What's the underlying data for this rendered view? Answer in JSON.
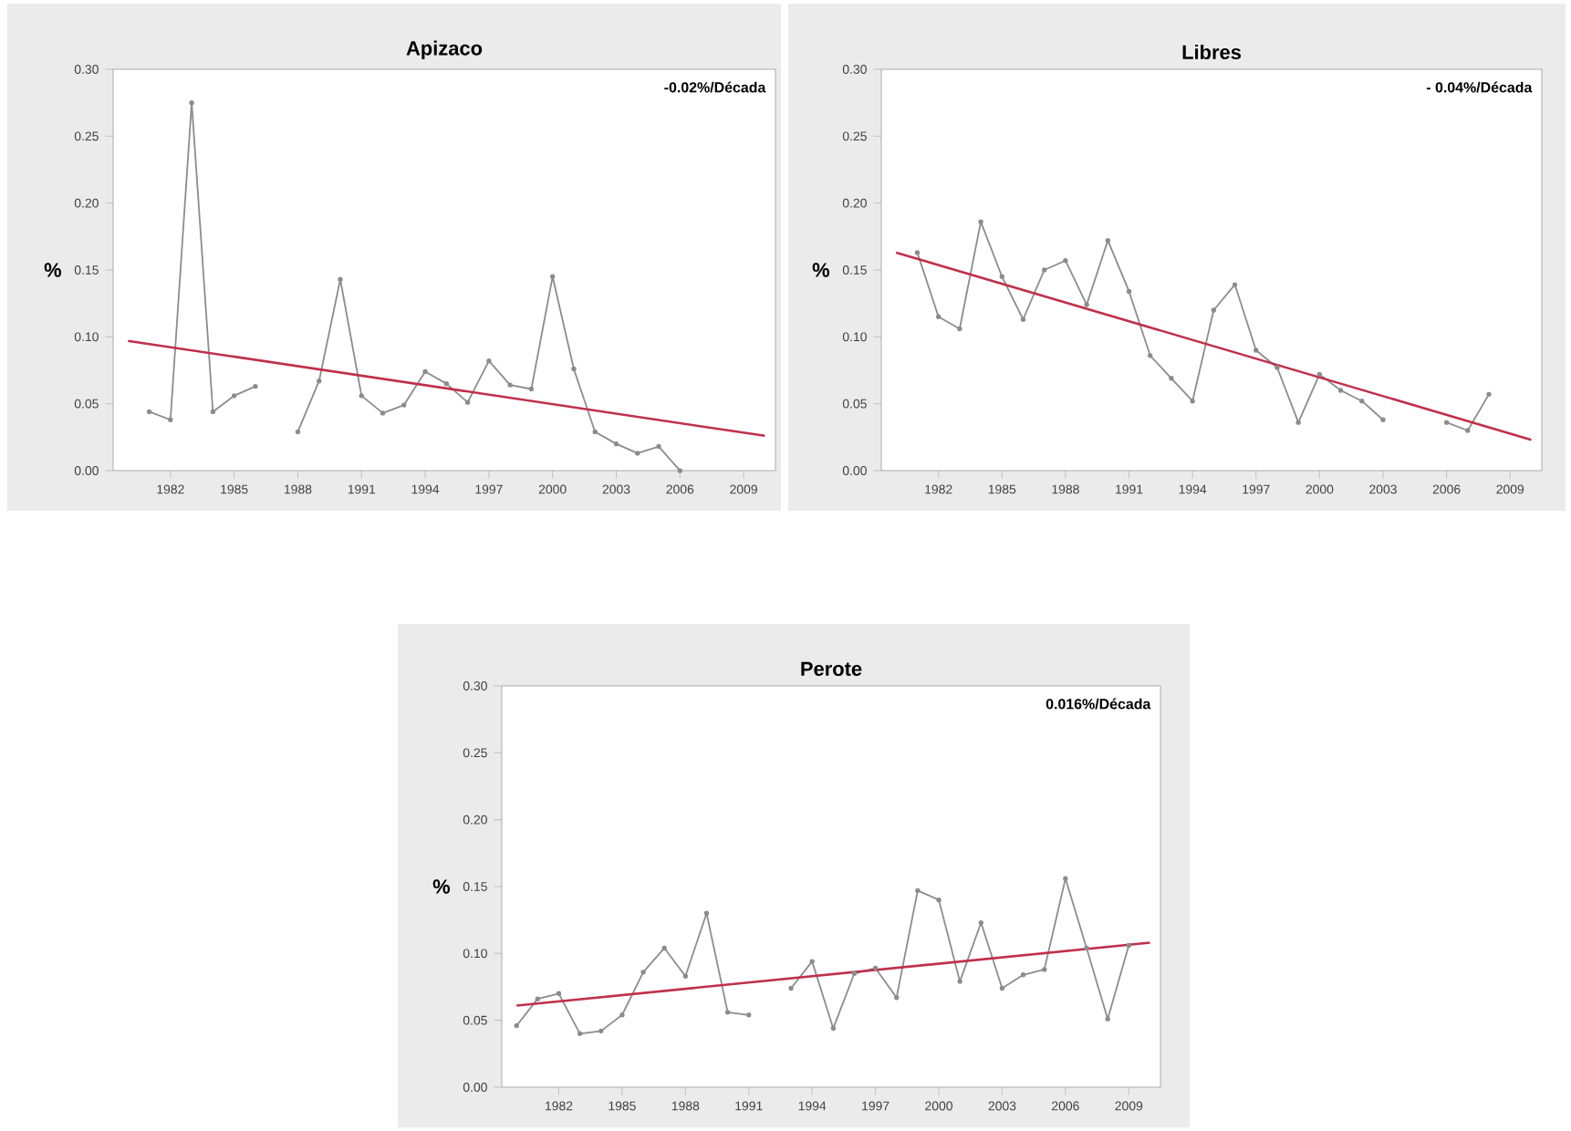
{
  "chart_data": [
    {
      "type": "line",
      "title": "Apizaco",
      "ylabel": "%",
      "annotations": [
        "-0.02%/Década"
      ],
      "xlim": [
        1979.3,
        2010.5
      ],
      "ylim": [
        0,
        0.3
      ],
      "xticks": [
        1982,
        1985,
        1988,
        1991,
        1994,
        1997,
        2000,
        2003,
        2006,
        2009
      ],
      "yticks": [
        {
          "value": 0,
          "label": "0.00"
        },
        {
          "value": 0.05,
          "label": "0.05"
        },
        {
          "value": 0.1,
          "label": "0.10"
        },
        {
          "value": 0.15,
          "label": "0.15"
        },
        {
          "value": 0.2,
          "label": "0.20"
        },
        {
          "value": 0.25,
          "label": "0.25"
        },
        {
          "value": 0.3,
          "label": "0.30"
        }
      ],
      "grid": false,
      "series": [
        {
          "color": "#8c8c8c",
          "marker": "circle",
          "x": [
            1981,
            1982,
            1983,
            1984,
            1985,
            1986,
            1987,
            1988,
            1989,
            1990,
            1991,
            1992,
            1993,
            1994,
            1995,
            1996,
            1997,
            1998,
            1999,
            2000,
            2001,
            2002,
            2003,
            2004,
            2005,
            2006
          ],
          "values": [
            0.044,
            0.038,
            0.275,
            0.044,
            0.056,
            0.063,
            null,
            0.029,
            0.067,
            0.143,
            0.056,
            0.043,
            0.049,
            0.074,
            0.065,
            0.051,
            0.082,
            0.064,
            0.061,
            0.145,
            0.076,
            0.029,
            0.02,
            0.013,
            0.018,
            0.0
          ]
        },
        {
          "color": "#c0304a",
          "marker": "none",
          "x": [
            1980,
            2010
          ],
          "values": [
            0.097,
            0.026
          ]
        }
      ]
    },
    {
      "type": "line",
      "title": "Libres",
      "ylabel": "%",
      "annotations": [
        "- 0.04%/Década"
      ],
      "xlim": [
        1979.3,
        2010.5
      ],
      "ylim": [
        0,
        0.3
      ],
      "xticks": [
        1982,
        1985,
        1988,
        1991,
        1994,
        1997,
        2000,
        2003,
        2006,
        2009
      ],
      "yticks": [
        {
          "value": 0,
          "label": "0.00"
        },
        {
          "value": 0.05,
          "label": "0.05"
        },
        {
          "value": 0.1,
          "label": "0.10"
        },
        {
          "value": 0.15,
          "label": "0.15"
        },
        {
          "value": 0.2,
          "label": "0.20"
        },
        {
          "value": 0.25,
          "label": "0.25"
        },
        {
          "value": 0.3,
          "label": "0.30"
        }
      ],
      "grid": false,
      "series": [
        {
          "color": "#8c8c8c",
          "marker": "circle",
          "x": [
            1981,
            1982,
            1983,
            1984,
            1985,
            1986,
            1987,
            1988,
            1989,
            1990,
            1991,
            1992,
            1993,
            1994,
            1995,
            1996,
            1997,
            1998,
            1999,
            2000,
            2001,
            2002,
            2003,
            2004,
            2005,
            2006,
            2007,
            2008
          ],
          "values": [
            0.163,
            0.115,
            0.106,
            0.186,
            0.145,
            0.113,
            0.15,
            0.157,
            0.124,
            0.172,
            0.134,
            0.086,
            0.069,
            0.052,
            0.12,
            0.139,
            0.09,
            0.077,
            0.036,
            0.072,
            0.06,
            0.052,
            0.038,
            null,
            null,
            0.036,
            0.03,
            0.057
          ]
        },
        {
          "color": "#c0304a",
          "marker": "none",
          "x": [
            1980,
            2010
          ],
          "values": [
            0.163,
            0.023
          ]
        }
      ]
    },
    {
      "type": "line",
      "title": "Perote",
      "ylabel": "%",
      "annotations": [
        "0.016%/Década"
      ],
      "xlim": [
        1979.3,
        2010.5
      ],
      "ylim": [
        0,
        0.3
      ],
      "xticks": [
        1982,
        1985,
        1988,
        1991,
        1994,
        1997,
        2000,
        2003,
        2006,
        2009
      ],
      "yticks": [
        {
          "value": 0,
          "label": "0.00"
        },
        {
          "value": 0.05,
          "label": "0.05"
        },
        {
          "value": 0.1,
          "label": "0.10"
        },
        {
          "value": 0.15,
          "label": "0.15"
        },
        {
          "value": 0.2,
          "label": "0.20"
        },
        {
          "value": 0.25,
          "label": "0.25"
        },
        {
          "value": 0.3,
          "label": "0.30"
        }
      ],
      "grid": false,
      "series": [
        {
          "color": "#8c8c8c",
          "marker": "circle",
          "x": [
            1980,
            1981,
            1982,
            1983,
            1984,
            1985,
            1986,
            1987,
            1988,
            1989,
            1990,
            1991,
            1992,
            1993,
            1994,
            1995,
            1996,
            1997,
            1998,
            1999,
            2000,
            2001,
            2002,
            2003,
            2004,
            2005,
            2006,
            2007,
            2008,
            2009
          ],
          "values": [
            0.046,
            0.066,
            0.07,
            0.04,
            0.042,
            0.054,
            0.086,
            0.104,
            0.083,
            0.13,
            0.056,
            0.054,
            null,
            0.074,
            0.094,
            0.044,
            0.085,
            0.089,
            0.067,
            0.147,
            0.14,
            0.079,
            0.123,
            0.074,
            0.084,
            0.088,
            0.156,
            0.104,
            0.051,
            0.106
          ]
        },
        {
          "color": "#c0304a",
          "marker": "none",
          "x": [
            1980,
            2010
          ],
          "values": [
            0.061,
            0.108
          ]
        }
      ]
    }
  ]
}
